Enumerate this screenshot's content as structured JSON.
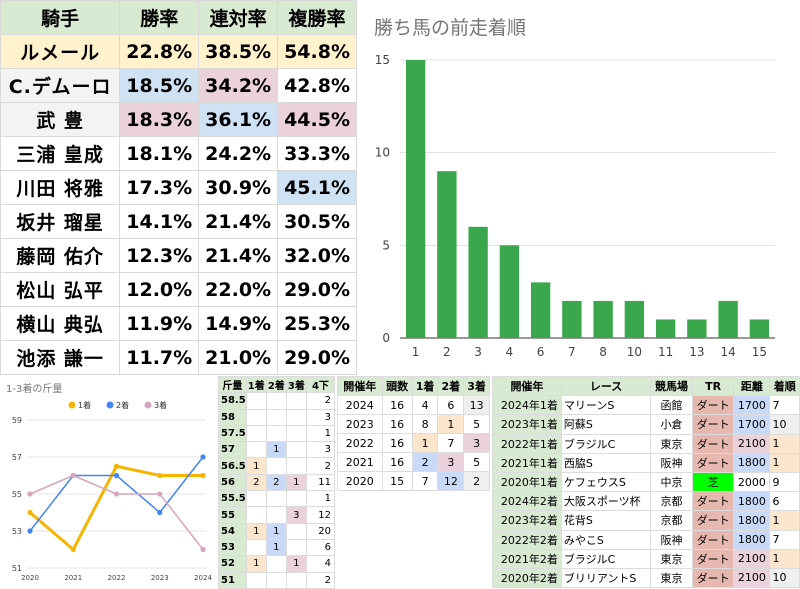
{
  "jockey_table": {
    "headers": [
      "騎手",
      "勝率",
      "連対率",
      "複勝率"
    ],
    "rows": [
      {
        "name": "ルメール",
        "win": "22.8%",
        "top2": "38.5%",
        "top3": "54.8%"
      },
      {
        "name": "C.デムーロ",
        "win": "18.5%",
        "top2": "34.2%",
        "top3": "42.8%"
      },
      {
        "name": "武 豊",
        "win": "18.3%",
        "top2": "36.1%",
        "top3": "44.5%"
      },
      {
        "name": "三浦 皇成",
        "win": "18.1%",
        "top2": "24.2%",
        "top3": "33.3%"
      },
      {
        "name": "川田 将雅",
        "win": "17.3%",
        "top2": "30.9%",
        "top3": "45.1%"
      },
      {
        "name": "坂井 瑠星",
        "win": "14.1%",
        "top2": "21.4%",
        "top3": "30.5%"
      },
      {
        "name": "藤岡 佑介",
        "win": "12.3%",
        "top2": "21.4%",
        "top3": "32.0%"
      },
      {
        "name": "松山 弘平",
        "win": "12.0%",
        "top2": "22.0%",
        "top3": "29.0%"
      },
      {
        "name": "横山 典弘",
        "win": "11.9%",
        "top2": "14.9%",
        "top3": "25.3%"
      },
      {
        "name": "池添 謙一",
        "win": "11.7%",
        "top2": "21.0%",
        "top3": "29.0%"
      }
    ],
    "colors": {
      "yellow": "#fff2cc",
      "blue": "#cfe2f3",
      "pink": "#ead1dc"
    }
  },
  "chart_data": [
    {
      "type": "bar",
      "title": "勝ち馬の前走着順",
      "categories": [
        "1",
        "2",
        "3",
        "4",
        "6",
        "7",
        "8",
        "10",
        "11",
        "13",
        "14",
        "15"
      ],
      "values": [
        15,
        9,
        6,
        5,
        3,
        2,
        2,
        2,
        1,
        1,
        2,
        1
      ],
      "ylim": [
        0,
        15
      ],
      "yticks": [
        0,
        5,
        10,
        15
      ],
      "grid": true,
      "color": "#3aa74c"
    },
    {
      "type": "line",
      "title": "1-3着の斤量",
      "x": [
        "2020",
        "2021",
        "2022",
        "2023",
        "2024"
      ],
      "ylim": [
        51,
        59
      ],
      "yticks": [
        51,
        53,
        55,
        57,
        59
      ],
      "legend": "top",
      "series": [
        {
          "name": "1着",
          "values": [
            54,
            52,
            56.5,
            56,
            56
          ],
          "color": "#f4b400"
        },
        {
          "name": "2着",
          "values": [
            53,
            56,
            56,
            54,
            57
          ],
          "color": "#4285f4"
        },
        {
          "name": "3着",
          "values": [
            55,
            56,
            55,
            55,
            52
          ],
          "color": "#d5a6bd"
        }
      ]
    }
  ],
  "weight_table": {
    "headers": [
      "斤量",
      "1着",
      "2着",
      "3着",
      "4下"
    ],
    "rows": [
      {
        "w": "58.5",
        "a": "",
        "b": "",
        "c": "",
        "d": "2"
      },
      {
        "w": "58",
        "a": "",
        "b": "",
        "c": "",
        "d": "3"
      },
      {
        "w": "57.5",
        "a": "",
        "b": "",
        "c": "",
        "d": "1"
      },
      {
        "w": "57",
        "a": "",
        "b": "1",
        "c": "",
        "d": "3"
      },
      {
        "w": "56.5",
        "a": "1",
        "b": "",
        "c": "",
        "d": "2"
      },
      {
        "w": "56",
        "a": "2",
        "b": "2",
        "c": "1",
        "d": "11"
      },
      {
        "w": "55.5",
        "a": "",
        "b": "",
        "c": "",
        "d": "1"
      },
      {
        "w": "55",
        "a": "",
        "b": "",
        "c": "3",
        "d": "12"
      },
      {
        "w": "54",
        "a": "1",
        "b": "1",
        "c": "",
        "d": "20"
      },
      {
        "w": "53",
        "a": "",
        "b": "1",
        "c": "",
        "d": "6"
      },
      {
        "w": "52",
        "a": "1",
        "b": "",
        "c": "1",
        "d": "4"
      },
      {
        "w": "51",
        "a": "",
        "b": "",
        "c": "",
        "d": "2"
      }
    ]
  },
  "year_table": {
    "headers": [
      "開催年",
      "頭数",
      "1着",
      "2着",
      "3着"
    ],
    "rows": [
      {
        "y": "2024",
        "n": "16",
        "a": "4",
        "b": "6",
        "c": "13"
      },
      {
        "y": "2023",
        "n": "16",
        "a": "8",
        "b": "1",
        "c": "5"
      },
      {
        "y": "2022",
        "n": "16",
        "a": "1",
        "b": "7",
        "c": "3"
      },
      {
        "y": "2021",
        "n": "16",
        "a": "2",
        "b": "3",
        "c": "5"
      },
      {
        "y": "2020",
        "n": "15",
        "a": "7",
        "b": "12",
        "c": "2"
      }
    ]
  },
  "race_table": {
    "headers": [
      "開催年",
      "レース",
      "競馬場",
      "TR",
      "距離",
      "着順"
    ],
    "rows": [
      {
        "lbl": "2024年1着",
        "race": "マリーンS",
        "track": "函館",
        "tr": "ダート",
        "dist": "1700",
        "pos": "7"
      },
      {
        "lbl": "2023年1着",
        "race": "阿蘇S",
        "track": "小倉",
        "tr": "ダート",
        "dist": "1700",
        "pos": "10"
      },
      {
        "lbl": "2022年1着",
        "race": "ブラジルC",
        "track": "東京",
        "tr": "ダート",
        "dist": "2100",
        "pos": "1"
      },
      {
        "lbl": "2021年1着",
        "race": "西脇S",
        "track": "阪神",
        "tr": "ダート",
        "dist": "1800",
        "pos": "1"
      },
      {
        "lbl": "2020年1着",
        "race": "ケフェウスS",
        "track": "中京",
        "tr": "芝",
        "dist": "2000",
        "pos": "9"
      },
      {
        "lbl": "2024年2着",
        "race": "大阪スポーツ杯",
        "track": "京都",
        "tr": "ダート",
        "dist": "1800",
        "pos": "6"
      },
      {
        "lbl": "2023年2着",
        "race": "花背S",
        "track": "京都",
        "tr": "ダート",
        "dist": "1800",
        "pos": "1"
      },
      {
        "lbl": "2022年2着",
        "race": "みやこS",
        "track": "阪神",
        "tr": "ダート",
        "dist": "1800",
        "pos": "7"
      },
      {
        "lbl": "2021年2着",
        "race": "ブラジルC",
        "track": "東京",
        "tr": "ダート",
        "dist": "2100",
        "pos": "1"
      },
      {
        "lbl": "2020年2着",
        "race": "ブリリアントS",
        "track": "東京",
        "tr": "ダート",
        "dist": "2100",
        "pos": "10"
      }
    ]
  }
}
